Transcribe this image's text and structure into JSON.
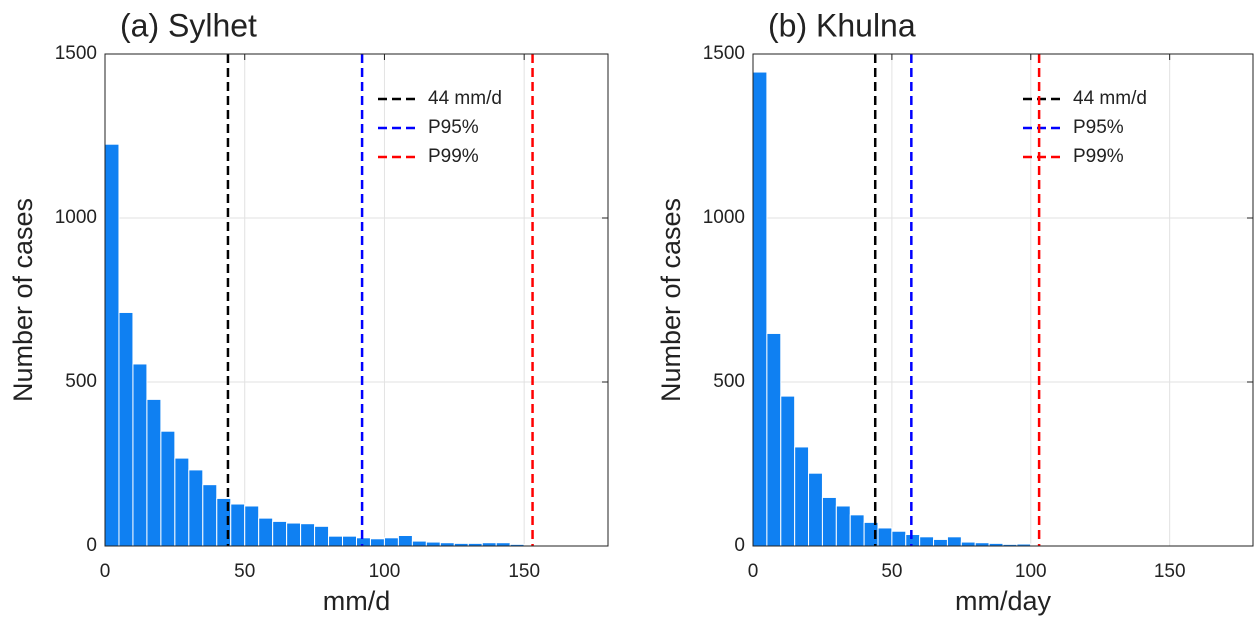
{
  "chart_data": [
    {
      "type": "histogram",
      "title": "(a) Sylhet",
      "xlabel": "mm/d",
      "ylabel": "Number of cases",
      "bins": [
        0,
        5,
        10,
        15,
        20,
        25,
        30,
        35,
        40,
        45,
        50,
        55,
        60,
        65,
        70,
        75,
        80,
        85,
        90,
        95,
        100,
        105,
        110,
        115,
        120,
        125,
        130,
        135,
        140,
        145,
        150,
        155,
        160,
        165,
        170,
        175,
        180
      ],
      "values": [
        1225,
        712,
        555,
        447,
        350,
        268,
        232,
        187,
        145,
        128,
        122,
        85,
        75,
        70,
        68,
        60,
        30,
        30,
        25,
        22,
        25,
        32,
        15,
        12,
        10,
        8,
        8,
        10,
        10,
        5,
        3,
        2,
        2,
        1,
        0,
        3
      ],
      "color": "#0f80f2",
      "xlim": [
        0,
        180
      ],
      "ylim": [
        0,
        1500
      ],
      "xticks": [
        0,
        50,
        100,
        150
      ],
      "yticks": [
        0,
        500,
        1000,
        1500
      ],
      "grid": true,
      "lines": [
        {
          "name": "44 mm/d",
          "x": 44,
          "color": "#000000"
        },
        {
          "name": "P95%",
          "x": 92,
          "color": "#0000ff"
        },
        {
          "name": "P99%",
          "x": 153,
          "color": "#ff0000"
        }
      ]
    },
    {
      "type": "histogram",
      "title": "(b) Khulna",
      "xlabel": "mm/day",
      "ylabel": "Number of cases",
      "bins": [
        0,
        5,
        10,
        15,
        20,
        25,
        30,
        35,
        40,
        45,
        50,
        55,
        60,
        65,
        70,
        75,
        80,
        85,
        90,
        95,
        100,
        105,
        110,
        115,
        120,
        125,
        130,
        135,
        140,
        145,
        150,
        155,
        160,
        165,
        170,
        175,
        180
      ],
      "values": [
        1445,
        648,
        457,
        302,
        222,
        148,
        122,
        95,
        72,
        55,
        45,
        35,
        28,
        20,
        28,
        12,
        10,
        8,
        5,
        6,
        3,
        0,
        0,
        2,
        0,
        3,
        0,
        0,
        0,
        0,
        0,
        0,
        0,
        0,
        0,
        0
      ],
      "color": "#0f80f2",
      "xlim": [
        0,
        180
      ],
      "ylim": [
        0,
        1500
      ],
      "xticks": [
        0,
        50,
        100,
        150
      ],
      "yticks": [
        0,
        500,
        1000,
        1500
      ],
      "grid": true,
      "lines": [
        {
          "name": "44 mm/d",
          "x": 44,
          "color": "#000000"
        },
        {
          "name": "P95%",
          "x": 57,
          "color": "#0000ff"
        },
        {
          "name": "P99%",
          "x": 103,
          "color": "#ff0000"
        }
      ]
    }
  ]
}
